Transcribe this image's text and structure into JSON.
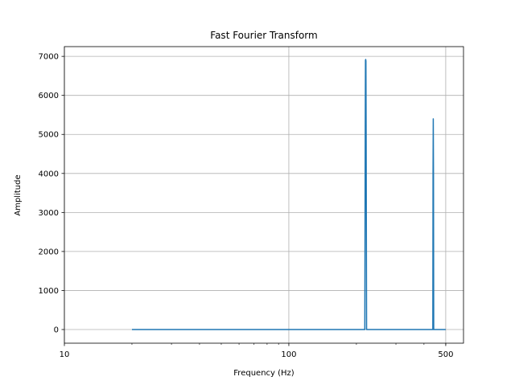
{
  "chart_data": {
    "type": "line",
    "title": "Fast Fourier Transform",
    "xlabel": "Frequency (Hz)",
    "ylabel": "Amplitude",
    "xscale": "log",
    "xlim": [
      10,
      600
    ],
    "ylim": [
      -350,
      7250
    ],
    "grid": true,
    "legend": "none",
    "colors": {
      "line": "#1f77b4"
    },
    "x_ticks": [
      {
        "value": 10,
        "label": "10"
      },
      {
        "value": 100,
        "label": "100"
      },
      {
        "value": 500,
        "label": "500"
      }
    ],
    "y_ticks": [
      {
        "value": 0,
        "label": "0"
      },
      {
        "value": 1000,
        "label": "1000"
      },
      {
        "value": 2000,
        "label": "2000"
      },
      {
        "value": 3000,
        "label": "3000"
      },
      {
        "value": 4000,
        "label": "4000"
      },
      {
        "value": 5000,
        "label": "5000"
      },
      {
        "value": 6000,
        "label": "6000"
      },
      {
        "value": 7000,
        "label": "7000"
      }
    ],
    "series": [
      {
        "x": [
          20,
          218,
          219,
          219.5,
          220,
          220.5,
          221,
          222,
          438,
          439,
          440,
          441,
          442,
          500
        ],
        "y": [
          0,
          0,
          5200,
          6900,
          6920,
          6880,
          5000,
          0,
          0,
          4000,
          5400,
          4000,
          0,
          0
        ]
      }
    ]
  }
}
